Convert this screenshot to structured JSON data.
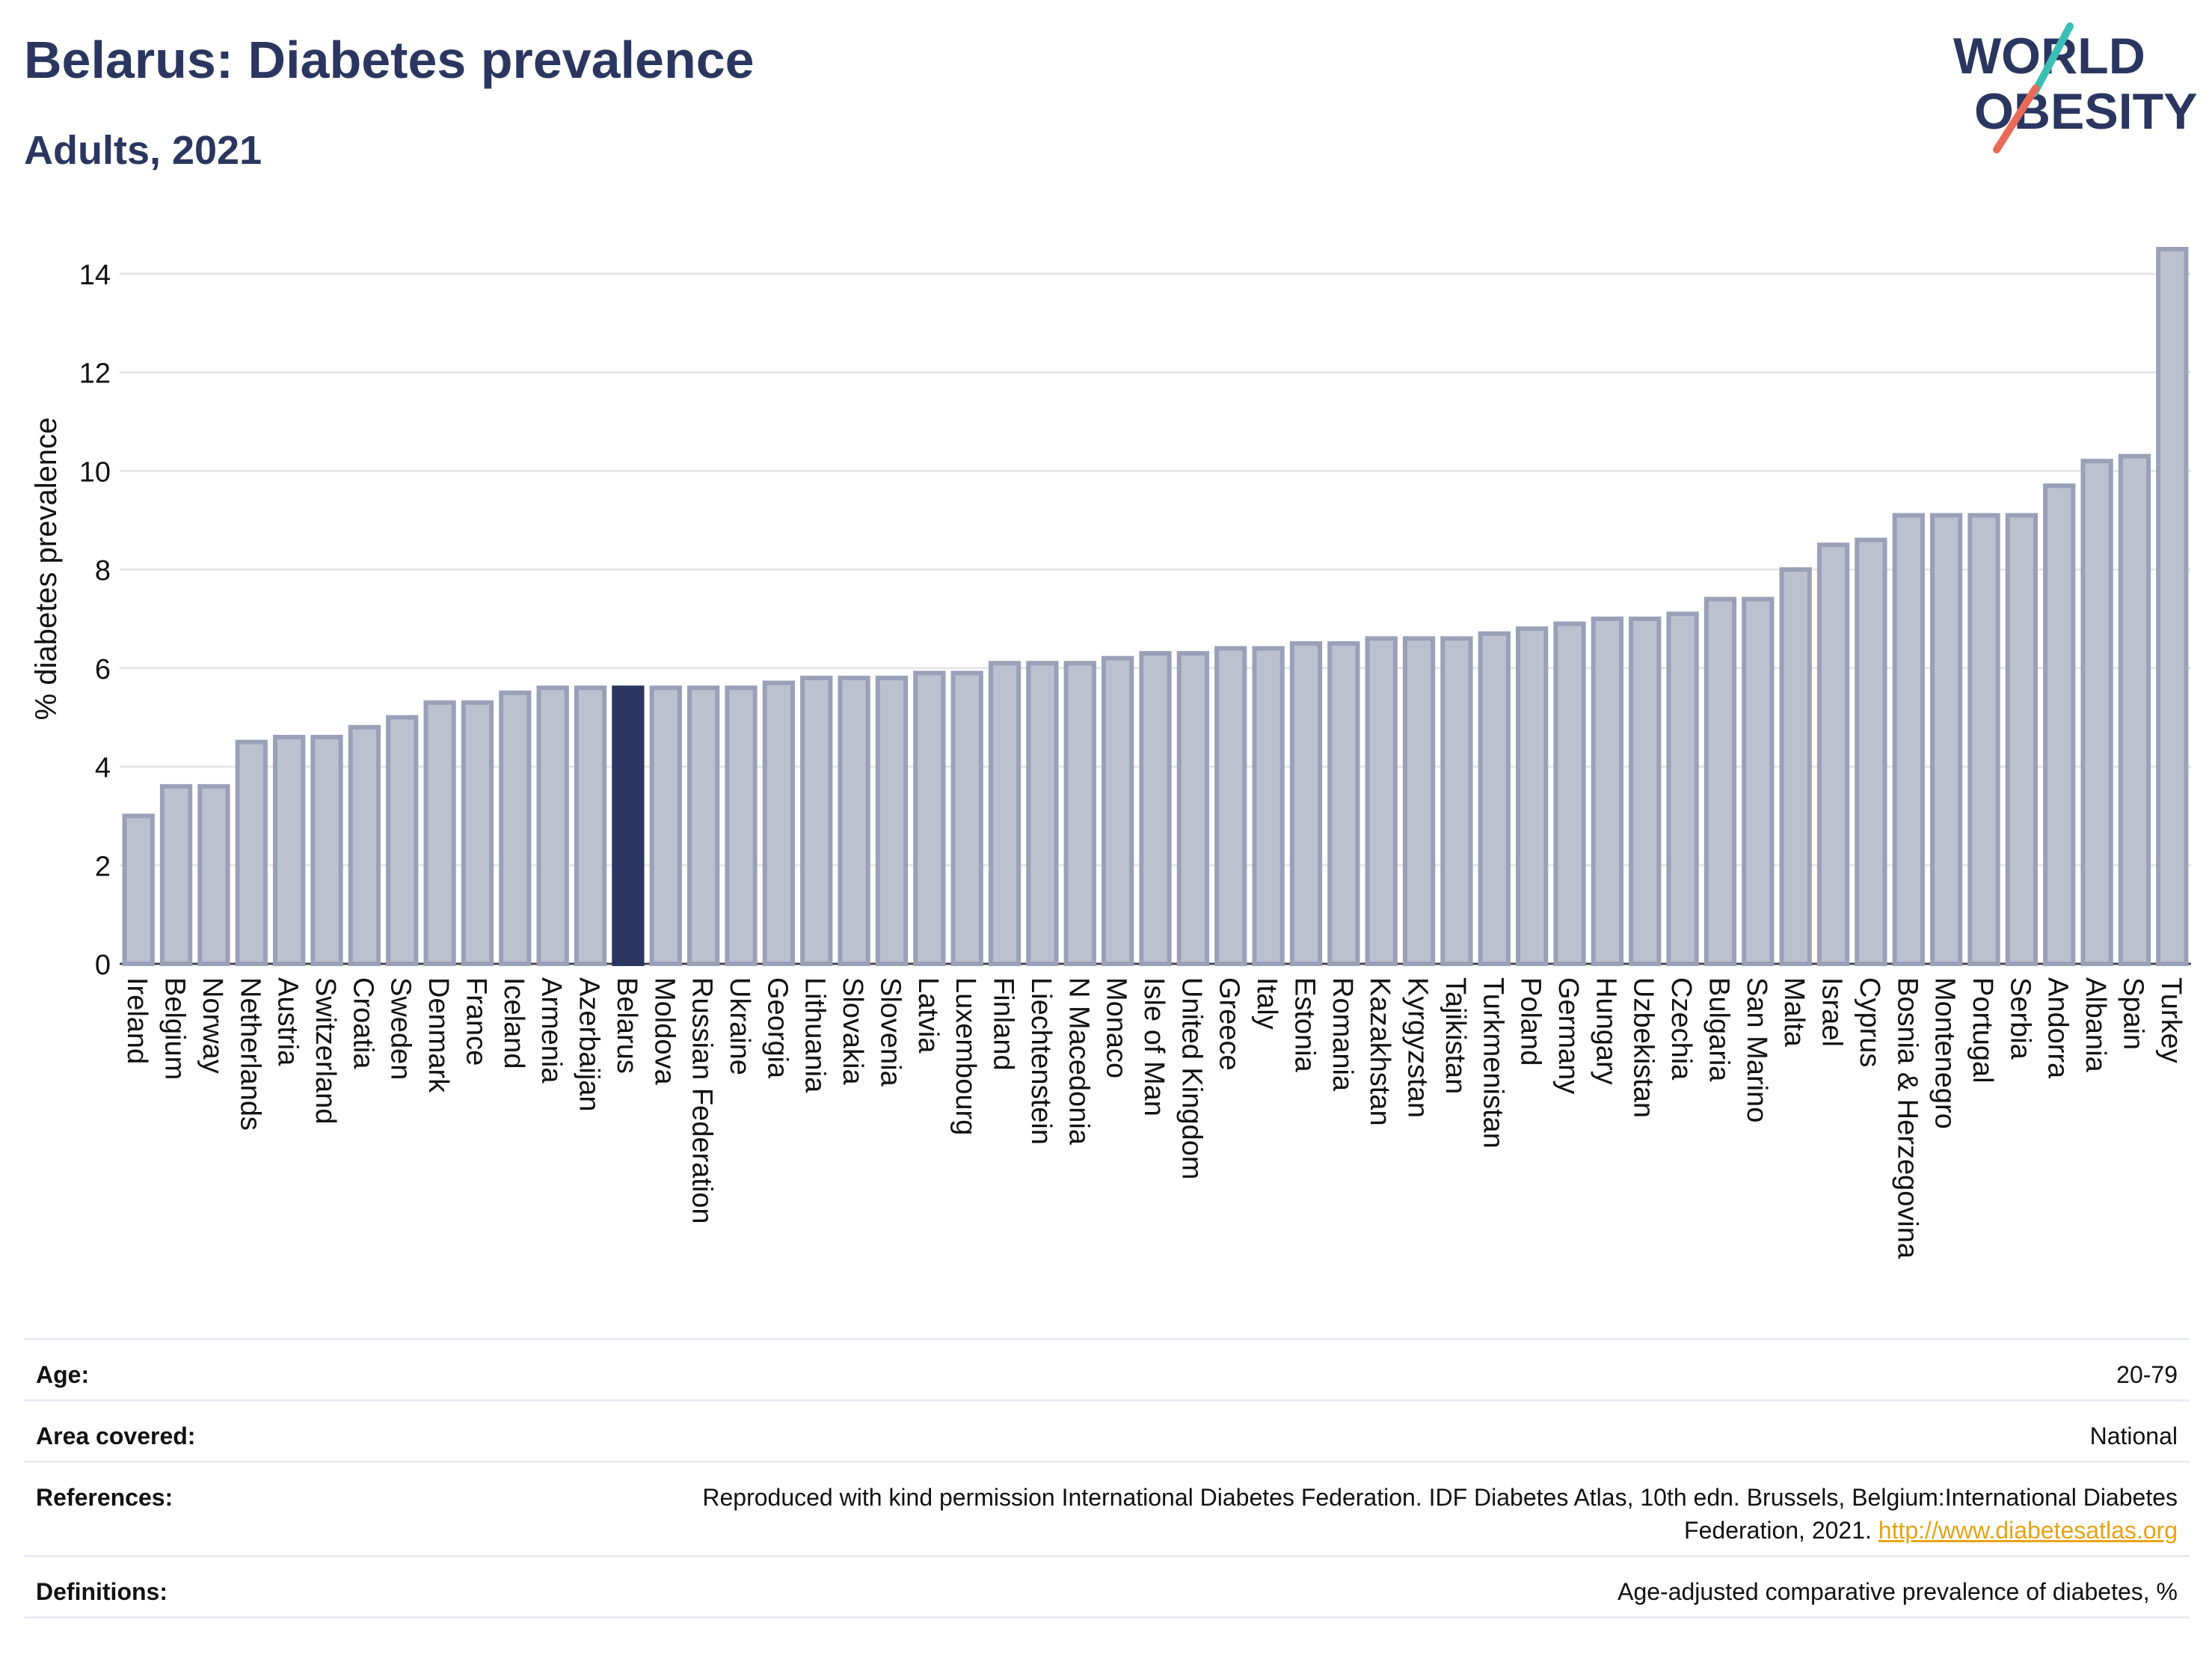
{
  "header": {
    "title": "Belarus: Diabetes prevalence",
    "subtitle": "Adults, 2021"
  },
  "logo": {
    "line1": "WORLD",
    "line2": "OBESITY"
  },
  "colors": {
    "title": "#2b3660",
    "bar_default": "#bcc1d0",
    "bar_default_stroke": "#9aa0b8",
    "bar_highlight": "#2b3660",
    "grid": "#e6e6e6",
    "link": "#e8a214"
  },
  "chart_data": {
    "type": "bar",
    "ylabel": "% diabetes prevalence",
    "xlabel": "",
    "ylim": [
      0,
      15
    ],
    "yticks": [
      0,
      2,
      4,
      6,
      8,
      10,
      12,
      14
    ],
    "grid": true,
    "highlight": "Belarus",
    "categories": [
      "Ireland",
      "Belgium",
      "Norway",
      "Netherlands",
      "Austria",
      "Switzerland",
      "Croatia",
      "Sweden",
      "Denmark",
      "France",
      "Iceland",
      "Armenia",
      "Azerbaijan",
      "Belarus",
      "Moldova",
      "Russian Federation",
      "Ukraine",
      "Georgia",
      "Lithuania",
      "Slovakia",
      "Slovenia",
      "Latvia",
      "Luxembourg",
      "Finland",
      "Liechtenstein",
      "N Macedonia",
      "Monaco",
      "Isle of Man",
      "United Kingdom",
      "Greece",
      "Italy",
      "Estonia",
      "Romania",
      "Kazakhstan",
      "Kyrgyzstan",
      "Tajikistan",
      "Turkmenistan",
      "Poland",
      "Germany",
      "Hungary",
      "Uzbekistan",
      "Czechia",
      "Bulgaria",
      "San Marino",
      "Malta",
      "Israel",
      "Cyprus",
      "Bosnia & Herzegovina",
      "Montenegro",
      "Portugal",
      "Serbia",
      "Andorra",
      "Albania",
      "Spain",
      "Turkey"
    ],
    "values": [
      3.0,
      3.6,
      3.6,
      4.5,
      4.6,
      4.6,
      4.8,
      5.0,
      5.3,
      5.3,
      5.5,
      5.6,
      5.6,
      5.6,
      5.6,
      5.6,
      5.6,
      5.7,
      5.8,
      5.8,
      5.8,
      5.9,
      5.9,
      6.1,
      6.1,
      6.1,
      6.2,
      6.3,
      6.3,
      6.4,
      6.4,
      6.5,
      6.5,
      6.6,
      6.6,
      6.6,
      6.7,
      6.8,
      6.9,
      7.0,
      7.0,
      7.1,
      7.4,
      7.4,
      8.0,
      8.5,
      8.6,
      9.1,
      9.1,
      9.1,
      9.1,
      9.7,
      10.2,
      10.3,
      14.5
    ]
  },
  "meta": {
    "age_label": "Age:",
    "age_value": "20-79",
    "area_label": "Area covered:",
    "area_value": "National",
    "references_label": "References:",
    "references_text": "Reproduced with kind permission International Diabetes Federation.  IDF Diabetes Atlas, 10th edn. Brussels, Belgium:International Diabetes Federation, 2021.",
    "references_link": "http://www.diabetesatlas.org",
    "definitions_label": "Definitions:",
    "definitions_value": "Age-adjusted comparative prevalence of diabetes, %"
  }
}
